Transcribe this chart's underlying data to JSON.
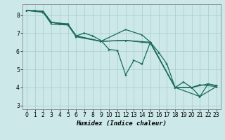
{
  "title": "",
  "xlabel": "Humidex (Indice chaleur)",
  "ylabel": "",
  "xlim": [
    -0.5,
    23.5
  ],
  "ylim": [
    2.8,
    8.6
  ],
  "bg_color": "#cce8e8",
  "line_color": "#1a6b5a",
  "series": [
    [
      0,
      8.25
    ],
    [
      1,
      8.25
    ],
    [
      2,
      8.2
    ],
    [
      3,
      7.6
    ],
    [
      4,
      7.5
    ],
    [
      5,
      7.5
    ],
    [
      6,
      6.85
    ],
    [
      7,
      7.0
    ],
    [
      8,
      6.85
    ],
    [
      9,
      6.6
    ],
    [
      10,
      6.1
    ],
    [
      11,
      6.05
    ],
    [
      12,
      4.7
    ],
    [
      13,
      5.5
    ],
    [
      14,
      5.3
    ],
    [
      15,
      6.5
    ],
    [
      16,
      5.95
    ],
    [
      17,
      5.3
    ],
    [
      18,
      4.0
    ],
    [
      19,
      4.3
    ],
    [
      20,
      4.0
    ],
    [
      21,
      3.5
    ],
    [
      22,
      4.2
    ],
    [
      23,
      4.1
    ]
  ],
  "series2": [
    [
      0,
      8.25
    ],
    [
      2,
      8.2
    ],
    [
      3,
      7.6
    ],
    [
      5,
      7.5
    ],
    [
      6,
      6.85
    ],
    [
      9,
      6.55
    ],
    [
      12,
      7.2
    ],
    [
      14,
      6.9
    ],
    [
      15,
      6.5
    ],
    [
      18,
      4.0
    ],
    [
      20,
      4.0
    ],
    [
      22,
      4.2
    ],
    [
      23,
      4.1
    ]
  ],
  "series3": [
    [
      0,
      8.25
    ],
    [
      2,
      8.2
    ],
    [
      3,
      7.6
    ],
    [
      5,
      7.5
    ],
    [
      6,
      6.85
    ],
    [
      9,
      6.55
    ],
    [
      12,
      6.6
    ],
    [
      15,
      6.5
    ],
    [
      18,
      4.0
    ],
    [
      21,
      3.5
    ],
    [
      23,
      4.05
    ]
  ],
  "series4": [
    [
      0,
      8.25
    ],
    [
      2,
      8.15
    ],
    [
      3,
      7.5
    ],
    [
      5,
      7.45
    ],
    [
      6,
      6.8
    ],
    [
      9,
      6.55
    ],
    [
      12,
      6.6
    ],
    [
      14,
      6.5
    ],
    [
      15,
      6.45
    ],
    [
      18,
      4.0
    ],
    [
      20,
      4.0
    ],
    [
      21,
      4.15
    ],
    [
      23,
      4.05
    ]
  ],
  "yticks": [
    3,
    4,
    5,
    6,
    7,
    8
  ],
  "xticks": [
    0,
    1,
    2,
    3,
    4,
    5,
    6,
    7,
    8,
    9,
    10,
    11,
    12,
    13,
    14,
    15,
    16,
    17,
    18,
    19,
    20,
    21,
    22,
    23
  ],
  "xtick_labels": [
    "0",
    "1",
    "2",
    "3",
    "4",
    "5",
    "6",
    "7",
    "8",
    "9",
    "10",
    "11",
    "12",
    "13",
    "14",
    "15",
    "16",
    "17",
    "18",
    "19",
    "20",
    "21",
    "22",
    "23"
  ],
  "grid_color": "#aacccc",
  "tick_fontsize": 5.5,
  "xlabel_fontsize": 6.5
}
